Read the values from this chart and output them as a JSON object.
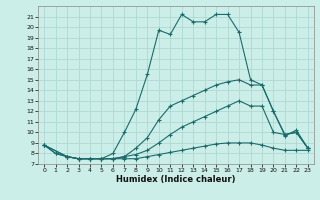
{
  "xlabel": "Humidex (Indice chaleur)",
  "bg_color": "#cceee8",
  "grid_color": "#aad4ce",
  "line_color": "#1a6b6b",
  "xlim": [
    -0.5,
    23.5
  ],
  "ylim": [
    7,
    22
  ],
  "xticks": [
    0,
    1,
    2,
    3,
    4,
    5,
    6,
    7,
    8,
    9,
    10,
    11,
    12,
    13,
    14,
    15,
    16,
    17,
    18,
    19,
    20,
    21,
    22,
    23
  ],
  "yticks": [
    7,
    8,
    9,
    10,
    11,
    12,
    13,
    14,
    15,
    16,
    17,
    18,
    19,
    20,
    21
  ],
  "series1_x": [
    0,
    1,
    2,
    3,
    4,
    5,
    6,
    7,
    8,
    9,
    10,
    11,
    12,
    13,
    14,
    15,
    16,
    17,
    18,
    19,
    20,
    21,
    22,
    23
  ],
  "series1_y": [
    8.8,
    8.0,
    7.7,
    7.5,
    7.5,
    7.5,
    7.5,
    7.5,
    7.5,
    7.7,
    7.9,
    8.1,
    8.3,
    8.5,
    8.7,
    8.9,
    9.0,
    9.0,
    9.0,
    8.8,
    8.5,
    8.3,
    8.3,
    8.3
  ],
  "series2_x": [
    0,
    1,
    2,
    3,
    4,
    5,
    6,
    7,
    8,
    9,
    10,
    11,
    12,
    13,
    14,
    15,
    16,
    17,
    18,
    19,
    20,
    21,
    22,
    23
  ],
  "series2_y": [
    8.8,
    8.0,
    7.7,
    7.5,
    7.5,
    7.5,
    8.0,
    10.0,
    12.2,
    15.5,
    19.7,
    19.3,
    21.2,
    20.5,
    20.5,
    21.2,
    21.2,
    19.5,
    15.0,
    14.5,
    12.0,
    9.7,
    10.2,
    8.5
  ],
  "series3_x": [
    0,
    2,
    3,
    4,
    5,
    6,
    7,
    8,
    9,
    10,
    11,
    12,
    13,
    14,
    15,
    16,
    17,
    18,
    19,
    20,
    21,
    22,
    23
  ],
  "series3_y": [
    8.8,
    7.7,
    7.5,
    7.5,
    7.5,
    7.5,
    7.7,
    8.5,
    9.5,
    11.2,
    12.5,
    13.0,
    13.5,
    14.0,
    14.5,
    14.8,
    15.0,
    14.5,
    14.5,
    12.0,
    9.8,
    10.0,
    8.5
  ],
  "series4_x": [
    0,
    2,
    3,
    4,
    5,
    6,
    7,
    8,
    9,
    10,
    11,
    12,
    13,
    14,
    15,
    16,
    17,
    18,
    19,
    20,
    21,
    22,
    23
  ],
  "series4_y": [
    8.8,
    7.7,
    7.5,
    7.5,
    7.5,
    7.5,
    7.7,
    7.9,
    8.3,
    9.0,
    9.8,
    10.5,
    11.0,
    11.5,
    12.0,
    12.5,
    13.0,
    12.5,
    12.5,
    10.0,
    9.8,
    10.0,
    8.5
  ]
}
